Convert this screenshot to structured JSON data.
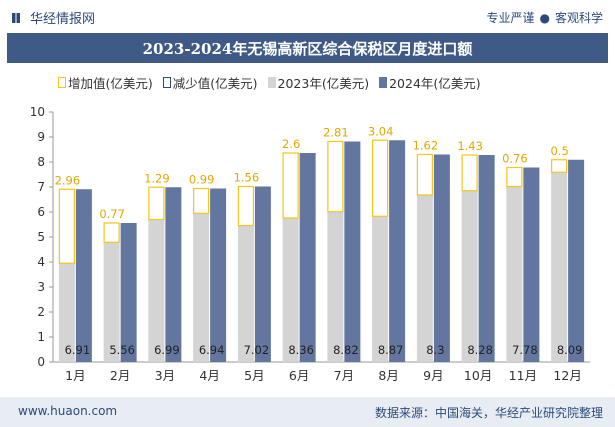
{
  "header": {
    "brand": "华经情报网",
    "tagline_left": "专业严谨",
    "tagline_right": "客观科学",
    "title": "2023-2024年无锡高新区综合保税区月度进口额"
  },
  "footer": {
    "url": "www.huaon.com",
    "source": "数据来源：中国海关，华经产业研究院整理"
  },
  "colors": {
    "accent": "#3f5a86",
    "series_2024": "#62769f",
    "series_2023": "#d4d4d4",
    "increase": "#f5c518",
    "decrease": "#2c4a7c"
  },
  "chart_data": {
    "type": "bar",
    "categories": [
      "1月",
      "2月",
      "3月",
      "4月",
      "5月",
      "6月",
      "7月",
      "8月",
      "9月",
      "10月",
      "11月",
      "12月"
    ],
    "series": [
      {
        "name": "增加值(亿美元)",
        "values": [
          2.96,
          0.77,
          1.29,
          0.99,
          1.56,
          2.6,
          2.81,
          3.04,
          1.62,
          1.43,
          0.76,
          0.5
        ]
      },
      {
        "name": "减少值(亿美元)",
        "values": [
          null,
          null,
          null,
          null,
          null,
          null,
          null,
          null,
          null,
          null,
          null,
          null
        ]
      },
      {
        "name": "2023年(亿美元)",
        "values": [
          3.95,
          4.79,
          5.7,
          5.95,
          5.46,
          5.76,
          6.01,
          5.83,
          6.68,
          6.85,
          7.02,
          7.59
        ]
      },
      {
        "name": "2024年(亿美元)",
        "values": [
          6.91,
          5.56,
          6.99,
          6.94,
          7.02,
          8.36,
          8.82,
          8.87,
          8.3,
          8.28,
          7.78,
          8.09
        ]
      }
    ],
    "increase_labels": [
      "2.96",
      "0.77",
      "1.29",
      "0.99",
      "1.56",
      "2.6",
      "2.81",
      "3.04",
      "1.62",
      "1.43",
      "0.76",
      "0.5"
    ],
    "value_labels_2024": [
      "6.91",
      "5.56",
      "6.99",
      "6.94",
      "7.02",
      "8.36",
      "8.82",
      "8.87",
      "8.3",
      "8.28",
      "7.78",
      "8.09"
    ],
    "yticks": [
      "0",
      "1",
      "2",
      "3",
      "4",
      "5",
      "6",
      "7",
      "8",
      "9",
      "10"
    ],
    "ylim": [
      0,
      10
    ],
    "legend_position": "top",
    "grid": false
  }
}
